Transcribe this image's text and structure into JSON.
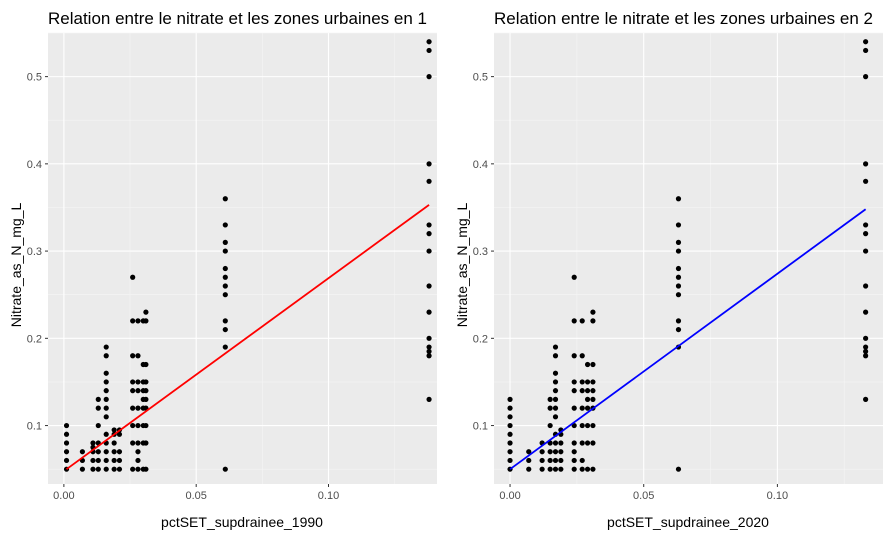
{
  "chart_data": [
    {
      "type": "scatter",
      "title": "Relation entre le nitrate et les zones urbaines en 1",
      "xlabel": "pctSET_supdrainee_1990",
      "ylabel": "Nitrate_as_N_mg_L",
      "xlim": [
        -0.006,
        0.141
      ],
      "ylim": [
        0.033,
        0.55
      ],
      "xticks": [
        0.0,
        0.05,
        0.1
      ],
      "xtick_labels": [
        "0.00",
        "0.05",
        "0.10"
      ],
      "yticks": [
        0.1,
        0.2,
        0.3,
        0.4,
        0.5
      ],
      "ytick_labels": [
        "0.1",
        "0.2",
        "0.3",
        "0.4",
        "0.5"
      ],
      "grid": true,
      "fit_line": {
        "color": "#ff0000",
        "x": [
          0.001,
          0.138
        ],
        "y": [
          0.05,
          0.353
        ]
      },
      "points": [
        [
          0.001,
          0.05
        ],
        [
          0.001,
          0.06
        ],
        [
          0.001,
          0.07
        ],
        [
          0.001,
          0.08
        ],
        [
          0.001,
          0.09
        ],
        [
          0.001,
          0.1
        ],
        [
          0.007,
          0.05
        ],
        [
          0.007,
          0.06
        ],
        [
          0.007,
          0.07
        ],
        [
          0.011,
          0.05
        ],
        [
          0.011,
          0.06
        ],
        [
          0.011,
          0.07
        ],
        [
          0.011,
          0.075
        ],
        [
          0.011,
          0.08
        ],
        [
          0.013,
          0.05
        ],
        [
          0.013,
          0.06
        ],
        [
          0.013,
          0.07
        ],
        [
          0.013,
          0.08
        ],
        [
          0.013,
          0.1
        ],
        [
          0.013,
          0.12
        ],
        [
          0.013,
          0.13
        ],
        [
          0.016,
          0.05
        ],
        [
          0.016,
          0.06
        ],
        [
          0.016,
          0.07
        ],
        [
          0.016,
          0.08
        ],
        [
          0.016,
          0.09
        ],
        [
          0.016,
          0.11
        ],
        [
          0.016,
          0.12
        ],
        [
          0.016,
          0.13
        ],
        [
          0.016,
          0.14
        ],
        [
          0.016,
          0.15
        ],
        [
          0.016,
          0.16
        ],
        [
          0.016,
          0.18
        ],
        [
          0.016,
          0.19
        ],
        [
          0.019,
          0.05
        ],
        [
          0.019,
          0.06
        ],
        [
          0.019,
          0.07
        ],
        [
          0.019,
          0.08
        ],
        [
          0.019,
          0.09
        ],
        [
          0.019,
          0.095
        ],
        [
          0.021,
          0.05
        ],
        [
          0.021,
          0.06
        ],
        [
          0.021,
          0.07
        ],
        [
          0.021,
          0.09
        ],
        [
          0.021,
          0.095
        ],
        [
          0.026,
          0.05
        ],
        [
          0.026,
          0.08
        ],
        [
          0.026,
          0.1
        ],
        [
          0.026,
          0.12
        ],
        [
          0.026,
          0.14
        ],
        [
          0.026,
          0.15
        ],
        [
          0.026,
          0.18
        ],
        [
          0.026,
          0.22
        ],
        [
          0.026,
          0.27
        ],
        [
          0.028,
          0.05
        ],
        [
          0.028,
          0.06
        ],
        [
          0.028,
          0.07
        ],
        [
          0.028,
          0.08
        ],
        [
          0.028,
          0.1
        ],
        [
          0.028,
          0.12
        ],
        [
          0.028,
          0.14
        ],
        [
          0.028,
          0.15
        ],
        [
          0.028,
          0.18
        ],
        [
          0.028,
          0.22
        ],
        [
          0.03,
          0.05
        ],
        [
          0.03,
          0.08
        ],
        [
          0.03,
          0.1
        ],
        [
          0.03,
          0.12
        ],
        [
          0.03,
          0.13
        ],
        [
          0.03,
          0.14
        ],
        [
          0.03,
          0.15
        ],
        [
          0.03,
          0.17
        ],
        [
          0.03,
          0.22
        ],
        [
          0.031,
          0.05
        ],
        [
          0.031,
          0.08
        ],
        [
          0.031,
          0.1
        ],
        [
          0.031,
          0.12
        ],
        [
          0.031,
          0.13
        ],
        [
          0.031,
          0.14
        ],
        [
          0.031,
          0.15
        ],
        [
          0.031,
          0.17
        ],
        [
          0.031,
          0.22
        ],
        [
          0.031,
          0.23
        ],
        [
          0.061,
          0.05
        ],
        [
          0.061,
          0.19
        ],
        [
          0.061,
          0.21
        ],
        [
          0.061,
          0.22
        ],
        [
          0.061,
          0.25
        ],
        [
          0.061,
          0.26
        ],
        [
          0.061,
          0.27
        ],
        [
          0.061,
          0.28
        ],
        [
          0.061,
          0.3
        ],
        [
          0.061,
          0.31
        ],
        [
          0.061,
          0.33
        ],
        [
          0.061,
          0.36
        ],
        [
          0.138,
          0.13
        ],
        [
          0.138,
          0.18
        ],
        [
          0.138,
          0.185
        ],
        [
          0.138,
          0.19
        ],
        [
          0.138,
          0.2
        ],
        [
          0.138,
          0.23
        ],
        [
          0.138,
          0.26
        ],
        [
          0.138,
          0.3
        ],
        [
          0.138,
          0.32
        ],
        [
          0.138,
          0.33
        ],
        [
          0.138,
          0.38
        ],
        [
          0.138,
          0.4
        ],
        [
          0.138,
          0.5
        ],
        [
          0.138,
          0.53
        ],
        [
          0.138,
          0.54
        ]
      ]
    },
    {
      "type": "scatter",
      "title": "Relation entre le nitrate et les zones urbaines en 2",
      "xlabel": "pctSET_supdrainee_2020",
      "ylabel": "Nitrate_as_N_mg_L",
      "xlim": [
        -0.006,
        0.1395
      ],
      "ylim": [
        0.033,
        0.55
      ],
      "xticks": [
        0.0,
        0.05,
        0.1
      ],
      "xtick_labels": [
        "0.00",
        "0.05",
        "0.10"
      ],
      "yticks": [
        0.1,
        0.2,
        0.3,
        0.4,
        0.5
      ],
      "ytick_labels": [
        "0.1",
        "0.2",
        "0.3",
        "0.4",
        "0.5"
      ],
      "grid": true,
      "fit_line": {
        "color": "#0000ff",
        "x": [
          0.0,
          0.133
        ],
        "y": [
          0.05,
          0.348
        ]
      },
      "points": [
        [
          0.0,
          0.05
        ],
        [
          0.0,
          0.06
        ],
        [
          0.0,
          0.07
        ],
        [
          0.0,
          0.08
        ],
        [
          0.0,
          0.09
        ],
        [
          0.0,
          0.1
        ],
        [
          0.0,
          0.11
        ],
        [
          0.0,
          0.12
        ],
        [
          0.0,
          0.13
        ],
        [
          0.007,
          0.05
        ],
        [
          0.007,
          0.06
        ],
        [
          0.007,
          0.07
        ],
        [
          0.012,
          0.05
        ],
        [
          0.012,
          0.06
        ],
        [
          0.012,
          0.07
        ],
        [
          0.012,
          0.08
        ],
        [
          0.015,
          0.05
        ],
        [
          0.015,
          0.06
        ],
        [
          0.015,
          0.07
        ],
        [
          0.015,
          0.08
        ],
        [
          0.015,
          0.1
        ],
        [
          0.015,
          0.12
        ],
        [
          0.015,
          0.13
        ],
        [
          0.017,
          0.05
        ],
        [
          0.017,
          0.06
        ],
        [
          0.017,
          0.07
        ],
        [
          0.017,
          0.08
        ],
        [
          0.017,
          0.09
        ],
        [
          0.017,
          0.11
        ],
        [
          0.017,
          0.12
        ],
        [
          0.017,
          0.13
        ],
        [
          0.017,
          0.14
        ],
        [
          0.017,
          0.15
        ],
        [
          0.017,
          0.16
        ],
        [
          0.017,
          0.18
        ],
        [
          0.017,
          0.19
        ],
        [
          0.019,
          0.05
        ],
        [
          0.019,
          0.06
        ],
        [
          0.019,
          0.07
        ],
        [
          0.019,
          0.08
        ],
        [
          0.019,
          0.09
        ],
        [
          0.019,
          0.095
        ],
        [
          0.024,
          0.05
        ],
        [
          0.024,
          0.06
        ],
        [
          0.024,
          0.07
        ],
        [
          0.024,
          0.08
        ],
        [
          0.024,
          0.1
        ],
        [
          0.024,
          0.12
        ],
        [
          0.024,
          0.14
        ],
        [
          0.024,
          0.15
        ],
        [
          0.024,
          0.18
        ],
        [
          0.024,
          0.22
        ],
        [
          0.024,
          0.27
        ],
        [
          0.027,
          0.05
        ],
        [
          0.027,
          0.06
        ],
        [
          0.027,
          0.08
        ],
        [
          0.027,
          0.1
        ],
        [
          0.027,
          0.12
        ],
        [
          0.027,
          0.14
        ],
        [
          0.027,
          0.15
        ],
        [
          0.027,
          0.18
        ],
        [
          0.027,
          0.22
        ],
        [
          0.029,
          0.05
        ],
        [
          0.029,
          0.08
        ],
        [
          0.029,
          0.1
        ],
        [
          0.029,
          0.12
        ],
        [
          0.029,
          0.13
        ],
        [
          0.029,
          0.14
        ],
        [
          0.029,
          0.15
        ],
        [
          0.029,
          0.17
        ],
        [
          0.031,
          0.05
        ],
        [
          0.031,
          0.08
        ],
        [
          0.031,
          0.1
        ],
        [
          0.031,
          0.12
        ],
        [
          0.031,
          0.13
        ],
        [
          0.031,
          0.14
        ],
        [
          0.031,
          0.15
        ],
        [
          0.031,
          0.17
        ],
        [
          0.031,
          0.22
        ],
        [
          0.031,
          0.23
        ],
        [
          0.063,
          0.05
        ],
        [
          0.063,
          0.19
        ],
        [
          0.063,
          0.21
        ],
        [
          0.063,
          0.22
        ],
        [
          0.063,
          0.25
        ],
        [
          0.063,
          0.26
        ],
        [
          0.063,
          0.27
        ],
        [
          0.063,
          0.28
        ],
        [
          0.063,
          0.3
        ],
        [
          0.063,
          0.31
        ],
        [
          0.063,
          0.33
        ],
        [
          0.063,
          0.36
        ],
        [
          0.133,
          0.13
        ],
        [
          0.133,
          0.18
        ],
        [
          0.133,
          0.185
        ],
        [
          0.133,
          0.19
        ],
        [
          0.133,
          0.2
        ],
        [
          0.133,
          0.23
        ],
        [
          0.133,
          0.26
        ],
        [
          0.133,
          0.3
        ],
        [
          0.133,
          0.32
        ],
        [
          0.133,
          0.33
        ],
        [
          0.133,
          0.38
        ],
        [
          0.133,
          0.4
        ],
        [
          0.133,
          0.5
        ],
        [
          0.133,
          0.53
        ],
        [
          0.133,
          0.54
        ]
      ]
    }
  ],
  "colors": {
    "panel_bg": "#ebebeb",
    "grid_major": "#ffffff",
    "point": "#000000",
    "tick_text": "#4d4d4d"
  }
}
